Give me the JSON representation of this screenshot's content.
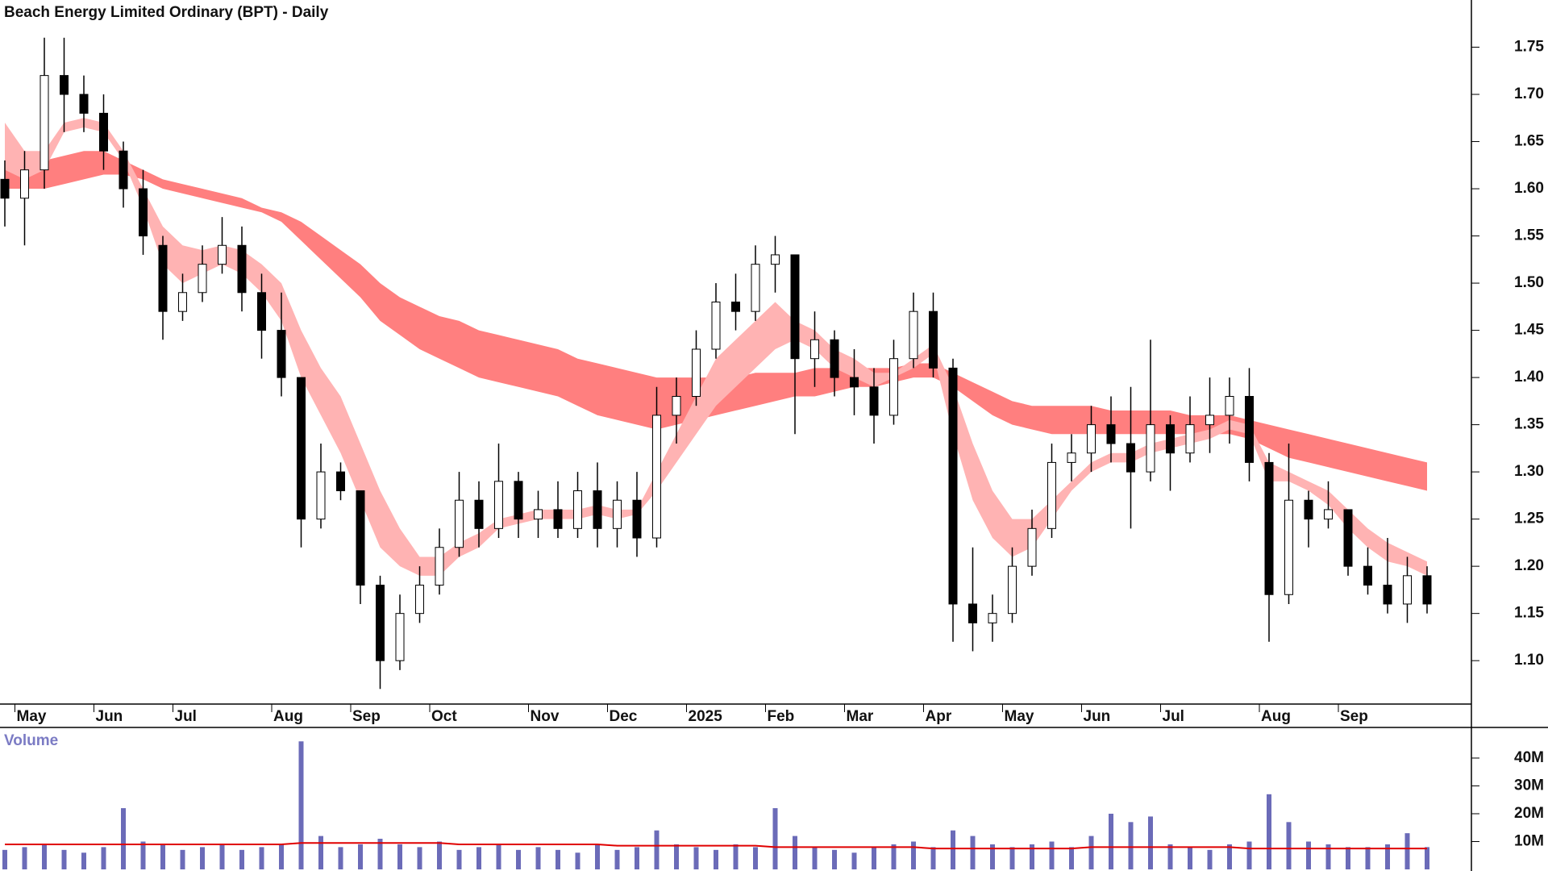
{
  "chart_data": [
    {
      "type": "candlestick",
      "title": "Beach Energy Limited Ordinary (BPT) - Daily",
      "categories": [
        null,
        "May",
        null,
        null,
        null,
        "Jun",
        null,
        null,
        null,
        "Jul",
        null,
        null,
        null,
        null,
        "Aug",
        null,
        null,
        null,
        "Sep",
        null,
        null,
        null,
        "Oct",
        null,
        null,
        null,
        null,
        "Nov",
        null,
        null,
        null,
        "Dec",
        null,
        null,
        null,
        "2025",
        null,
        null,
        null,
        "Feb",
        null,
        null,
        null,
        "Mar",
        null,
        null,
        null,
        "Apr",
        null,
        null,
        null,
        "May",
        null,
        null,
        null,
        "Jun",
        null,
        null,
        null,
        "Jul",
        null,
        null,
        null,
        null,
        "Aug",
        null,
        null,
        null,
        "Sep",
        null,
        null,
        null,
        null
      ],
      "open": [
        1.61,
        1.59,
        1.62,
        1.72,
        1.7,
        1.68,
        1.64,
        1.6,
        1.54,
        1.47,
        1.49,
        1.52,
        1.54,
        1.49,
        1.45,
        1.4,
        1.25,
        1.3,
        1.28,
        1.18,
        1.1,
        1.15,
        1.18,
        1.22,
        1.27,
        1.24,
        1.29,
        1.25,
        1.26,
        1.24,
        1.28,
        1.24,
        1.27,
        1.23,
        1.36,
        1.38,
        1.43,
        1.48,
        1.47,
        1.52,
        1.53,
        1.42,
        1.44,
        1.4,
        1.39,
        1.36,
        1.42,
        1.47,
        1.41,
        1.16,
        1.14,
        1.15,
        1.2,
        1.24,
        1.31,
        1.32,
        1.35,
        1.33,
        1.3,
        1.35,
        1.32,
        1.35,
        1.36,
        1.38,
        1.31,
        1.17,
        1.27,
        1.25,
        1.26,
        1.2,
        1.18,
        1.16,
        1.19
      ],
      "high": [
        1.63,
        1.64,
        1.76,
        1.76,
        1.72,
        1.7,
        1.65,
        1.62,
        1.55,
        1.51,
        1.54,
        1.57,
        1.56,
        1.51,
        1.49,
        1.4,
        1.33,
        1.31,
        1.28,
        1.19,
        1.17,
        1.2,
        1.24,
        1.3,
        1.29,
        1.33,
        1.3,
        1.28,
        1.29,
        1.3,
        1.31,
        1.29,
        1.3,
        1.39,
        1.4,
        1.45,
        1.5,
        1.51,
        1.54,
        1.55,
        1.53,
        1.47,
        1.45,
        1.43,
        1.41,
        1.44,
        1.49,
        1.49,
        1.42,
        1.22,
        1.17,
        1.22,
        1.26,
        1.33,
        1.34,
        1.37,
        1.38,
        1.39,
        1.44,
        1.36,
        1.38,
        1.4,
        1.4,
        1.41,
        1.32,
        1.33,
        1.28,
        1.29,
        1.26,
        1.22,
        1.23,
        1.21,
        1.2
      ],
      "low": [
        1.56,
        1.54,
        1.6,
        1.66,
        1.66,
        1.62,
        1.58,
        1.53,
        1.44,
        1.46,
        1.48,
        1.51,
        1.47,
        1.42,
        1.38,
        1.22,
        1.24,
        1.27,
        1.16,
        1.07,
        1.09,
        1.14,
        1.17,
        1.21,
        1.22,
        1.23,
        1.23,
        1.23,
        1.23,
        1.23,
        1.22,
        1.22,
        1.21,
        1.22,
        1.33,
        1.37,
        1.42,
        1.45,
        1.46,
        1.49,
        1.34,
        1.39,
        1.38,
        1.36,
        1.33,
        1.35,
        1.41,
        1.4,
        1.12,
        1.11,
        1.12,
        1.14,
        1.19,
        1.23,
        1.29,
        1.3,
        1.31,
        1.24,
        1.29,
        1.28,
        1.31,
        1.32,
        1.33,
        1.29,
        1.12,
        1.16,
        1.22,
        1.24,
        1.19,
        1.17,
        1.15,
        1.14,
        1.15
      ],
      "close": [
        1.59,
        1.62,
        1.72,
        1.7,
        1.68,
        1.64,
        1.6,
        1.55,
        1.47,
        1.49,
        1.52,
        1.54,
        1.49,
        1.45,
        1.4,
        1.25,
        1.3,
        1.28,
        1.18,
        1.1,
        1.15,
        1.18,
        1.22,
        1.27,
        1.24,
        1.29,
        1.25,
        1.26,
        1.24,
        1.28,
        1.24,
        1.27,
        1.23,
        1.36,
        1.38,
        1.43,
        1.48,
        1.47,
        1.52,
        1.53,
        1.42,
        1.44,
        1.4,
        1.39,
        1.36,
        1.42,
        1.47,
        1.41,
        1.16,
        1.14,
        1.15,
        1.2,
        1.24,
        1.31,
        1.32,
        1.35,
        1.33,
        1.3,
        1.35,
        1.32,
        1.35,
        1.36,
        1.38,
        1.31,
        1.17,
        1.27,
        1.25,
        1.26,
        1.2,
        1.18,
        1.16,
        1.19,
        1.16
      ],
      "up_color": "#ffffff",
      "down_color": "#000000",
      "bands": [
        {
          "color": "#ff7f7f",
          "upper": [
            1.63,
            1.63,
            1.63,
            1.635,
            1.64,
            1.64,
            1.63,
            1.62,
            1.61,
            1.605,
            1.6,
            1.595,
            1.59,
            1.58,
            1.575,
            1.565,
            1.55,
            1.535,
            1.52,
            1.5,
            1.485,
            1.475,
            1.465,
            1.46,
            1.45,
            1.445,
            1.44,
            1.435,
            1.43,
            1.42,
            1.415,
            1.41,
            1.405,
            1.4,
            1.4,
            1.4,
            1.4,
            1.4,
            1.405,
            1.405,
            1.405,
            1.41,
            1.41,
            1.41,
            1.41,
            1.41,
            1.415,
            1.415,
            1.405,
            1.395,
            1.385,
            1.375,
            1.37,
            1.37,
            1.37,
            1.37,
            1.365,
            1.365,
            1.365,
            1.365,
            1.36,
            1.36,
            1.36,
            1.355,
            1.35,
            1.345,
            1.34,
            1.335,
            1.33,
            1.325,
            1.32,
            1.315,
            1.31
          ],
          "lower": [
            1.6,
            1.6,
            1.6,
            1.605,
            1.61,
            1.615,
            1.615,
            1.61,
            1.6,
            1.595,
            1.59,
            1.585,
            1.58,
            1.575,
            1.565,
            1.545,
            1.525,
            1.505,
            1.485,
            1.46,
            1.445,
            1.43,
            1.42,
            1.41,
            1.4,
            1.395,
            1.39,
            1.385,
            1.38,
            1.37,
            1.36,
            1.355,
            1.35,
            1.345,
            1.35,
            1.355,
            1.36,
            1.365,
            1.37,
            1.375,
            1.38,
            1.38,
            1.385,
            1.39,
            1.39,
            1.395,
            1.4,
            1.4,
            1.39,
            1.375,
            1.36,
            1.35,
            1.345,
            1.34,
            1.34,
            1.34,
            1.34,
            1.34,
            1.34,
            1.34,
            1.34,
            1.34,
            1.34,
            1.335,
            1.325,
            1.315,
            1.31,
            1.305,
            1.3,
            1.295,
            1.29,
            1.285,
            1.28
          ]
        },
        {
          "color": "#ffb3b3",
          "upper": [
            1.67,
            1.64,
            1.64,
            1.67,
            1.675,
            1.67,
            1.64,
            1.6,
            1.56,
            1.54,
            1.535,
            1.54,
            1.535,
            1.52,
            1.5,
            1.45,
            1.41,
            1.38,
            1.33,
            1.28,
            1.24,
            1.21,
            1.21,
            1.225,
            1.235,
            1.25,
            1.255,
            1.26,
            1.26,
            1.26,
            1.265,
            1.26,
            1.26,
            1.3,
            1.34,
            1.38,
            1.42,
            1.44,
            1.46,
            1.48,
            1.46,
            1.45,
            1.43,
            1.42,
            1.405,
            1.405,
            1.42,
            1.435,
            1.39,
            1.33,
            1.28,
            1.25,
            1.25,
            1.27,
            1.29,
            1.31,
            1.32,
            1.32,
            1.33,
            1.335,
            1.34,
            1.345,
            1.355,
            1.35,
            1.31,
            1.3,
            1.29,
            1.28,
            1.26,
            1.24,
            1.225,
            1.215,
            1.205
          ],
          "lower": [
            1.62,
            1.61,
            1.62,
            1.66,
            1.665,
            1.66,
            1.63,
            1.58,
            1.52,
            1.5,
            1.51,
            1.52,
            1.51,
            1.49,
            1.46,
            1.4,
            1.36,
            1.32,
            1.27,
            1.22,
            1.2,
            1.19,
            1.19,
            1.21,
            1.22,
            1.24,
            1.245,
            1.25,
            1.25,
            1.25,
            1.255,
            1.25,
            1.255,
            1.28,
            1.31,
            1.34,
            1.37,
            1.39,
            1.41,
            1.43,
            1.44,
            1.43,
            1.41,
            1.4,
            1.39,
            1.4,
            1.41,
            1.425,
            1.34,
            1.27,
            1.23,
            1.21,
            1.22,
            1.25,
            1.28,
            1.3,
            1.31,
            1.31,
            1.32,
            1.325,
            1.33,
            1.335,
            1.345,
            1.34,
            1.29,
            1.29,
            1.28,
            1.265,
            1.24,
            1.22,
            1.205,
            1.2,
            1.19
          ]
        }
      ],
      "ylim": [
        1.054,
        1.8
      ],
      "yticks": [
        {
          "value": 1.1,
          "label": "1.10"
        },
        1.15,
        {
          "value": 1.2,
          "label": "1.20"
        },
        1.25,
        {
          "value": 1.3,
          "label": "1.30"
        },
        1.35,
        {
          "value": 1.4,
          "label": "1.40"
        },
        1.45,
        {
          "value": 1.5,
          "label": "1.50"
        },
        1.55,
        {
          "value": 1.6,
          "label": "1.60"
        },
        1.65,
        {
          "value": 1.7,
          "label": "1.70"
        },
        1.75
      ]
    },
    {
      "type": "bar",
      "title": "Volume",
      "color": "#6b6bb8",
      "values": [
        7000000,
        8000000,
        9000000,
        7000000,
        6000000,
        8000000,
        22000000,
        10000000,
        9000000,
        7000000,
        8000000,
        9000000,
        7000000,
        8000000,
        9000000,
        46000000,
        12000000,
        8000000,
        9000000,
        11000000,
        9000000,
        8000000,
        10000000,
        7000000,
        8000000,
        9000000,
        7000000,
        8000000,
        7000000,
        6000000,
        9000000,
        7000000,
        8000000,
        14000000,
        9000000,
        8000000,
        7000000,
        9000000,
        8000000,
        22000000,
        12000000,
        8000000,
        7000000,
        6000000,
        8000000,
        9000000,
        10000000,
        8000000,
        14000000,
        12000000,
        9000000,
        8000000,
        9000000,
        10000000,
        8000000,
        12000000,
        20000000,
        17000000,
        19000000,
        9000000,
        8000000,
        7000000,
        9000000,
        10000000,
        27000000,
        17000000,
        10000000,
        9000000,
        8000000,
        8000000,
        9000000,
        13000000,
        8000000
      ],
      "average": {
        "color": "#e00000",
        "values": [
          9000000,
          9000000,
          9000000,
          9000000,
          9000000,
          9000000,
          9000000,
          9000000,
          9000000,
          9000000,
          9000000,
          9000000,
          9000000,
          9000000,
          9000000,
          9500000,
          9500000,
          9500000,
          9500000,
          9500000,
          9500000,
          9500000,
          9500000,
          9000000,
          9000000,
          9000000,
          9000000,
          9000000,
          9000000,
          9000000,
          9000000,
          8500000,
          8500000,
          8500000,
          8500000,
          8500000,
          8500000,
          8500000,
          8500000,
          8000000,
          8000000,
          8000000,
          8000000,
          8000000,
          8000000,
          8000000,
          8000000,
          7500000,
          7500000,
          7500000,
          7500000,
          7500000,
          7500000,
          7500000,
          7500000,
          8000000,
          8000000,
          8000000,
          8000000,
          8000000,
          8000000,
          8000000,
          8000000,
          7500000,
          7500000,
          7500000,
          7500000,
          7500000,
          7500000,
          7500000,
          7500000,
          7500000,
          7500000
        ]
      },
      "ylim": [
        0,
        51000000
      ],
      "yticks": [
        {
          "value": 10000000,
          "label": "10M"
        },
        {
          "value": 20000000,
          "label": "20M"
        },
        {
          "value": 30000000,
          "label": "30M"
        },
        {
          "value": 40000000,
          "label": "40M"
        }
      ]
    }
  ]
}
